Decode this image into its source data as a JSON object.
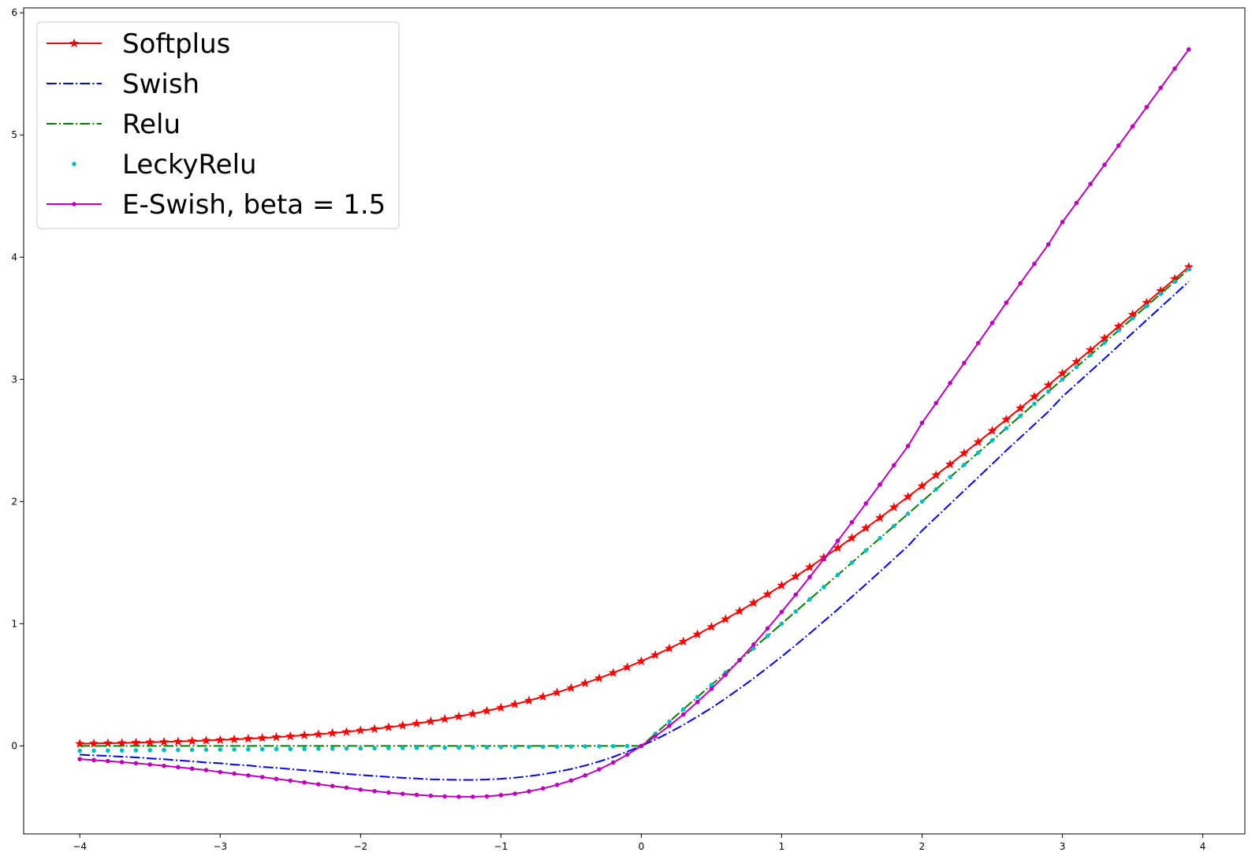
{
  "chart_data": {
    "type": "line",
    "title": "",
    "xlabel": "",
    "ylabel": "",
    "xlim": [
      -4.4,
      4.3
    ],
    "ylim": [
      -0.72,
      6.04
    ],
    "grid": false,
    "legend_position": "top-left",
    "x_ticks": [
      -4,
      -3,
      -2,
      -1,
      0,
      1,
      2,
      3,
      4
    ],
    "x_tick_labels": [
      "−4",
      "−3",
      "−2",
      "−1",
      "0",
      "1",
      "2",
      "3",
      "4"
    ],
    "y_ticks": [
      0,
      1,
      2,
      3,
      4,
      5,
      6
    ],
    "y_tick_labels": [
      "0",
      "1",
      "2",
      "3",
      "4",
      "5",
      "6"
    ],
    "x": [
      -4.0,
      -3.9,
      -3.8,
      -3.7,
      -3.6,
      -3.5,
      -3.4,
      -3.3,
      -3.2,
      -3.1,
      -3.0,
      -2.9,
      -2.8,
      -2.7,
      -2.6,
      -2.5,
      -2.4,
      -2.3,
      -2.2,
      -2.1,
      -2.0,
      -1.9,
      -1.8,
      -1.7,
      -1.6,
      -1.5,
      -1.4,
      -1.3,
      -1.2,
      -1.1,
      -1.0,
      -0.9,
      -0.8,
      -0.7,
      -0.6,
      -0.5,
      -0.4,
      -0.3,
      -0.2,
      -0.1,
      0.0,
      0.1,
      0.2,
      0.3,
      0.4,
      0.5,
      0.6,
      0.7,
      0.8,
      0.9,
      1.0,
      1.1,
      1.2,
      1.3,
      1.4,
      1.5,
      1.6,
      1.7,
      1.8,
      1.9,
      2.0,
      2.1,
      2.2,
      2.3,
      2.4,
      2.5,
      2.6,
      2.7,
      2.8,
      2.9,
      3.0,
      3.1,
      3.2,
      3.3,
      3.4,
      3.5,
      3.6,
      3.7,
      3.8,
      3.9
    ],
    "series": [
      {
        "name": "Softplus",
        "color": "#ff0000",
        "line": "solid",
        "marker": "star",
        "values": [
          0.018,
          0.02,
          0.022,
          0.024,
          0.027,
          0.03,
          0.033,
          0.036,
          0.04,
          0.044,
          0.049,
          0.054,
          0.059,
          0.065,
          0.072,
          0.079,
          0.087,
          0.095,
          0.105,
          0.115,
          0.127,
          0.139,
          0.153,
          0.167,
          0.183,
          0.201,
          0.22,
          0.241,
          0.263,
          0.287,
          0.313,
          0.341,
          0.371,
          0.403,
          0.437,
          0.474,
          0.513,
          0.554,
          0.598,
          0.644,
          0.693,
          0.744,
          0.798,
          0.854,
          0.913,
          0.974,
          1.037,
          1.103,
          1.171,
          1.241,
          1.313,
          1.387,
          1.463,
          1.541,
          1.62,
          1.701,
          1.783,
          1.867,
          1.953,
          2.039,
          2.127,
          2.216,
          2.305,
          2.396,
          2.487,
          2.579,
          2.671,
          2.764,
          2.858,
          2.952,
          3.049,
          3.144,
          3.24,
          3.336,
          3.433,
          3.53,
          3.627,
          3.724,
          3.822,
          3.92
        ]
      },
      {
        "name": "Swish",
        "color": "#0000ff",
        "line": "dashdot",
        "marker": "none",
        "values": [
          -0.072,
          -0.077,
          -0.082,
          -0.088,
          -0.094,
          -0.102,
          -0.109,
          -0.118,
          -0.126,
          -0.136,
          -0.142,
          -0.153,
          -0.16,
          -0.172,
          -0.179,
          -0.19,
          -0.199,
          -0.21,
          -0.218,
          -0.229,
          -0.238,
          -0.246,
          -0.254,
          -0.261,
          -0.267,
          -0.273,
          -0.276,
          -0.278,
          -0.278,
          -0.275,
          -0.269,
          -0.26,
          -0.248,
          -0.232,
          -0.212,
          -0.189,
          -0.161,
          -0.128,
          -0.09,
          -0.047,
          0.0,
          0.052,
          0.11,
          0.172,
          0.24,
          0.311,
          0.388,
          0.469,
          0.553,
          0.641,
          0.731,
          0.825,
          0.921,
          1.019,
          1.118,
          1.22,
          1.322,
          1.426,
          1.531,
          1.636,
          1.762,
          1.871,
          1.98,
          2.089,
          2.198,
          2.307,
          2.418,
          2.524,
          2.63,
          2.736,
          2.858,
          2.962,
          3.066,
          3.17,
          3.275,
          3.38,
          3.485,
          3.59,
          3.695,
          3.8
        ]
      },
      {
        "name": "Relu",
        "color": "#008000",
        "line": "dashdot",
        "marker": "none",
        "values": [
          0.0,
          0.0,
          0.0,
          0.0,
          0.0,
          0.0,
          0.0,
          0.0,
          0.0,
          0.0,
          0.0,
          0.0,
          0.0,
          0.0,
          0.0,
          0.0,
          0.0,
          0.0,
          0.0,
          0.0,
          0.0,
          0.0,
          0.0,
          0.0,
          0.0,
          0.0,
          0.0,
          0.0,
          0.0,
          0.0,
          0.0,
          0.0,
          0.0,
          0.0,
          0.0,
          0.0,
          0.0,
          0.0,
          0.0,
          0.0,
          0.0,
          0.1,
          0.2,
          0.3,
          0.4,
          0.5,
          0.6,
          0.7,
          0.8,
          0.9,
          1.0,
          1.1,
          1.2,
          1.3,
          1.4,
          1.5,
          1.6,
          1.7,
          1.8,
          1.9,
          2.0,
          2.1,
          2.2,
          2.3,
          2.4,
          2.5,
          2.6,
          2.7,
          2.8,
          2.9,
          3.0,
          3.1,
          3.2,
          3.3,
          3.4,
          3.5,
          3.6,
          3.7,
          3.8,
          3.9
        ]
      },
      {
        "name": "LeckyRelu",
        "color": "#00bfbf",
        "line": "none",
        "marker": "dot",
        "values": [
          -0.04,
          -0.039,
          -0.038,
          -0.037,
          -0.036,
          -0.035,
          -0.034,
          -0.033,
          -0.032,
          -0.031,
          -0.03,
          -0.029,
          -0.028,
          -0.027,
          -0.026,
          -0.025,
          -0.024,
          -0.023,
          -0.022,
          -0.021,
          -0.02,
          -0.019,
          -0.018,
          -0.017,
          -0.016,
          -0.015,
          -0.014,
          -0.013,
          -0.012,
          -0.011,
          -0.01,
          -0.009,
          -0.008,
          -0.007,
          -0.006,
          -0.005,
          -0.004,
          -0.003,
          -0.002,
          -0.001,
          0.0,
          0.1,
          0.2,
          0.3,
          0.4,
          0.5,
          0.6,
          0.7,
          0.8,
          0.9,
          1.0,
          1.1,
          1.2,
          1.3,
          1.4,
          1.5,
          1.6,
          1.7,
          1.8,
          1.9,
          2.0,
          2.1,
          2.2,
          2.3,
          2.4,
          2.5,
          2.6,
          2.7,
          2.8,
          2.9,
          3.0,
          3.1,
          3.2,
          3.3,
          3.4,
          3.5,
          3.6,
          3.7,
          3.8,
          3.9
        ]
      },
      {
        "name": "E-Swish, beta = 1.5",
        "color": "#bf00bf",
        "line": "solid",
        "marker": "dot",
        "values": [
          -0.108,
          -0.116,
          -0.124,
          -0.133,
          -0.142,
          -0.152,
          -0.163,
          -0.174,
          -0.186,
          -0.198,
          -0.214,
          -0.227,
          -0.241,
          -0.255,
          -0.27,
          -0.284,
          -0.299,
          -0.314,
          -0.328,
          -0.342,
          -0.358,
          -0.37,
          -0.382,
          -0.392,
          -0.401,
          -0.408,
          -0.413,
          -0.416,
          -0.416,
          -0.413,
          -0.403,
          -0.391,
          -0.372,
          -0.348,
          -0.319,
          -0.283,
          -0.241,
          -0.192,
          -0.136,
          -0.072,
          0.0,
          0.079,
          0.165,
          0.258,
          0.359,
          0.467,
          0.582,
          0.703,
          0.83,
          0.962,
          1.097,
          1.238,
          1.382,
          1.529,
          1.679,
          1.83,
          1.984,
          2.139,
          2.297,
          2.454,
          2.643,
          2.806,
          2.97,
          3.134,
          3.297,
          3.461,
          3.627,
          3.786,
          3.945,
          4.104,
          4.287,
          4.443,
          4.599,
          4.756,
          4.913,
          5.07,
          5.228,
          5.385,
          5.543,
          5.7
        ]
      }
    ]
  }
}
